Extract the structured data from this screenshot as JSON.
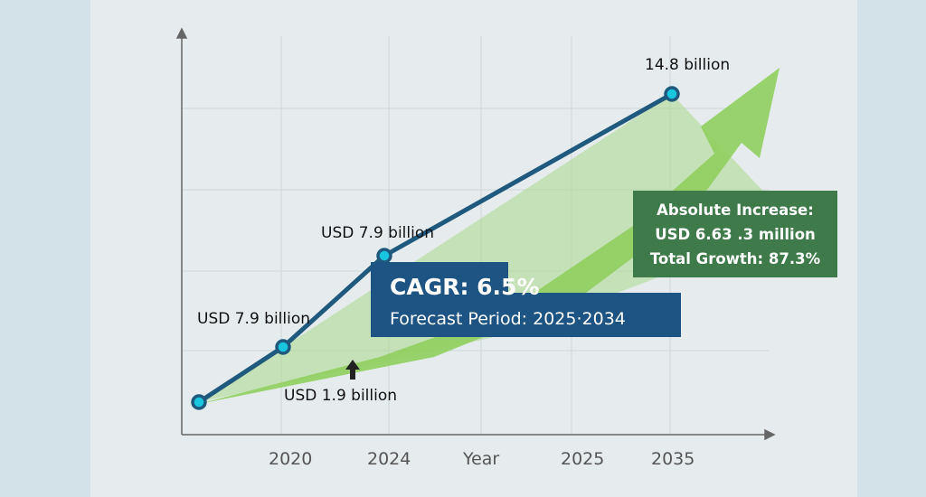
{
  "chart_data": {
    "type": "line",
    "x_tick_labels": [
      "2020",
      "2024",
      "Year",
      "2025",
      "2035"
    ],
    "series": [
      {
        "points": [
          {
            "label": ""
          },
          {
            "label": "USD 7.9 billion"
          },
          {
            "label": "USD 7.9 billion"
          },
          {
            "label": "14.8 billion"
          }
        ]
      }
    ],
    "annotations": {
      "arrow_label": "USD 1.9 billion",
      "cagr_title": "CAGR: 6.5%",
      "cagr_subtitle": "Forecast Period: 2025·2034",
      "increase_lines": [
        "Absolute Increase:",
        "USD 6.63 .3 million",
        "Total Growth: 87.3%"
      ]
    },
    "grid": true,
    "colors": {
      "line": "#1f5a7e",
      "marker": "#18c6e0",
      "growth_arrow": "#8fcf5e",
      "cagr_box": "#1d5484",
      "increase_box": "#3f7b4a"
    }
  }
}
